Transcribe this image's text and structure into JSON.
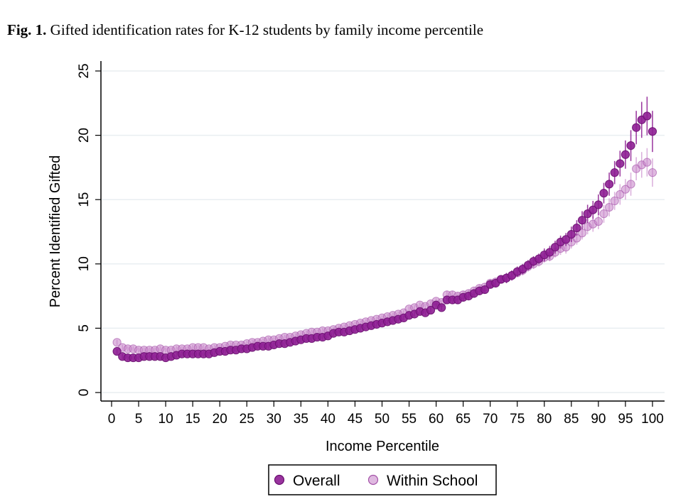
{
  "figure": {
    "label": "Fig. 1.",
    "title": "Gifted identification rates for K-12 students by family income percentile"
  },
  "chart_data": {
    "type": "scatter",
    "title": "Gifted identification rates for K-12 students by family income percentile",
    "xlabel": "Income Percentile",
    "ylabel": "Percent Identified Gifted",
    "xlim": [
      0,
      100
    ],
    "ylim": [
      0,
      25
    ],
    "x_ticks": [
      "0",
      "5",
      "10",
      "15",
      "20",
      "25",
      "30",
      "35",
      "40",
      "45",
      "50",
      "55",
      "60",
      "65",
      "70",
      "75",
      "80",
      "85",
      "90",
      "95",
      "100"
    ],
    "y_ticks": [
      "0",
      "5",
      "10",
      "15",
      "20",
      "25"
    ],
    "grid": true,
    "legend_position": "bottom",
    "series": [
      {
        "name": "Overall",
        "color": "#8a1c8f",
        "x": [
          1,
          2,
          3,
          4,
          5,
          6,
          7,
          8,
          9,
          10,
          11,
          12,
          13,
          14,
          15,
          16,
          17,
          18,
          19,
          20,
          21,
          22,
          23,
          24,
          25,
          26,
          27,
          28,
          29,
          30,
          31,
          32,
          33,
          34,
          35,
          36,
          37,
          38,
          39,
          40,
          41,
          42,
          43,
          44,
          45,
          46,
          47,
          48,
          49,
          50,
          51,
          52,
          53,
          54,
          55,
          56,
          57,
          58,
          59,
          60,
          61,
          62,
          63,
          64,
          65,
          66,
          67,
          68,
          69,
          70,
          71,
          72,
          73,
          74,
          75,
          76,
          77,
          78,
          79,
          80,
          81,
          82,
          83,
          84,
          85,
          86,
          87,
          88,
          89,
          90,
          91,
          92,
          93,
          94,
          95,
          96,
          97,
          98,
          99,
          100
        ],
        "y": [
          3.2,
          2.8,
          2.7,
          2.7,
          2.7,
          2.8,
          2.8,
          2.8,
          2.8,
          2.7,
          2.8,
          2.9,
          3.0,
          3.0,
          3.0,
          3.0,
          3.0,
          3.0,
          3.1,
          3.2,
          3.2,
          3.3,
          3.3,
          3.4,
          3.4,
          3.5,
          3.6,
          3.6,
          3.6,
          3.7,
          3.8,
          3.8,
          3.9,
          4.0,
          4.1,
          4.2,
          4.2,
          4.3,
          4.3,
          4.4,
          4.6,
          4.7,
          4.7,
          4.8,
          4.9,
          5.0,
          5.1,
          5.2,
          5.3,
          5.4,
          5.5,
          5.6,
          5.7,
          5.8,
          6.0,
          6.1,
          6.3,
          6.2,
          6.4,
          6.8,
          6.6,
          7.2,
          7.2,
          7.2,
          7.4,
          7.5,
          7.7,
          7.9,
          8.0,
          8.4,
          8.5,
          8.8,
          8.9,
          9.1,
          9.4,
          9.6,
          9.9,
          10.2,
          10.4,
          10.7,
          10.9,
          11.3,
          11.7,
          11.9,
          12.3,
          12.8,
          13.4,
          13.9,
          14.2,
          14.6,
          15.5,
          16.2,
          17.1,
          17.8,
          18.5,
          19.2,
          20.6,
          21.2,
          21.5,
          20.3
        ],
        "error": [
          0.2,
          0.2,
          0.2,
          0.2,
          0.2,
          0.2,
          0.2,
          0.2,
          0.2,
          0.2,
          0.2,
          0.2,
          0.2,
          0.2,
          0.2,
          0.2,
          0.2,
          0.2,
          0.2,
          0.2,
          0.2,
          0.2,
          0.2,
          0.2,
          0.2,
          0.2,
          0.2,
          0.2,
          0.2,
          0.2,
          0.2,
          0.2,
          0.2,
          0.2,
          0.2,
          0.2,
          0.2,
          0.2,
          0.2,
          0.2,
          0.2,
          0.2,
          0.2,
          0.2,
          0.2,
          0.2,
          0.2,
          0.2,
          0.2,
          0.2,
          0.2,
          0.2,
          0.2,
          0.2,
          0.2,
          0.2,
          0.2,
          0.2,
          0.2,
          0.2,
          0.2,
          0.3,
          0.3,
          0.3,
          0.3,
          0.3,
          0.3,
          0.3,
          0.3,
          0.3,
          0.3,
          0.3,
          0.4,
          0.4,
          0.4,
          0.4,
          0.4,
          0.4,
          0.4,
          0.5,
          0.5,
          0.5,
          0.5,
          0.5,
          0.6,
          0.6,
          0.7,
          0.7,
          0.7,
          0.8,
          0.8,
          0.9,
          0.9,
          1.0,
          1.1,
          1.2,
          1.3,
          1.4,
          1.5,
          1.6
        ]
      },
      {
        "name": "Within School",
        "color": "#c77fc9",
        "x": [
          1,
          2,
          3,
          4,
          5,
          6,
          7,
          8,
          9,
          10,
          11,
          12,
          13,
          14,
          15,
          16,
          17,
          18,
          19,
          20,
          21,
          22,
          23,
          24,
          25,
          26,
          27,
          28,
          29,
          30,
          31,
          32,
          33,
          34,
          35,
          36,
          37,
          38,
          39,
          40,
          41,
          42,
          43,
          44,
          45,
          46,
          47,
          48,
          49,
          50,
          51,
          52,
          53,
          54,
          55,
          56,
          57,
          58,
          59,
          60,
          61,
          62,
          63,
          64,
          65,
          66,
          67,
          68,
          69,
          70,
          71,
          72,
          73,
          74,
          75,
          76,
          77,
          78,
          79,
          80,
          81,
          82,
          83,
          84,
          85,
          86,
          87,
          88,
          89,
          90,
          91,
          92,
          93,
          94,
          95,
          96,
          97,
          98,
          99,
          100
        ],
        "y": [
          3.9,
          3.5,
          3.4,
          3.4,
          3.3,
          3.3,
          3.3,
          3.3,
          3.4,
          3.3,
          3.3,
          3.4,
          3.4,
          3.4,
          3.5,
          3.5,
          3.5,
          3.4,
          3.5,
          3.5,
          3.6,
          3.7,
          3.7,
          3.7,
          3.8,
          3.9,
          3.9,
          4.0,
          4.1,
          4.1,
          4.2,
          4.3,
          4.3,
          4.4,
          4.5,
          4.6,
          4.7,
          4.7,
          4.8,
          4.8,
          4.9,
          5.0,
          5.1,
          5.2,
          5.3,
          5.4,
          5.5,
          5.6,
          5.7,
          5.8,
          5.9,
          6.0,
          6.1,
          6.2,
          6.5,
          6.6,
          6.8,
          6.7,
          6.9,
          7.1,
          7.0,
          7.6,
          7.6,
          7.5,
          7.6,
          7.7,
          7.9,
          8.1,
          8.2,
          8.5,
          8.6,
          8.8,
          8.9,
          9.1,
          9.3,
          9.5,
          9.8,
          10.0,
          10.2,
          10.5,
          10.6,
          10.9,
          11.2,
          11.3,
          11.7,
          12.0,
          12.4,
          12.9,
          13.1,
          13.3,
          13.9,
          14.4,
          14.9,
          15.4,
          15.8,
          16.2,
          17.4,
          17.7,
          17.9,
          17.1
        ],
        "error": [
          0.2,
          0.2,
          0.2,
          0.2,
          0.2,
          0.2,
          0.2,
          0.2,
          0.2,
          0.2,
          0.2,
          0.2,
          0.2,
          0.2,
          0.2,
          0.2,
          0.2,
          0.2,
          0.2,
          0.2,
          0.2,
          0.2,
          0.2,
          0.2,
          0.2,
          0.2,
          0.2,
          0.2,
          0.2,
          0.2,
          0.2,
          0.2,
          0.2,
          0.2,
          0.2,
          0.2,
          0.2,
          0.2,
          0.2,
          0.2,
          0.2,
          0.2,
          0.2,
          0.2,
          0.2,
          0.2,
          0.2,
          0.2,
          0.2,
          0.2,
          0.2,
          0.2,
          0.2,
          0.2,
          0.2,
          0.2,
          0.2,
          0.2,
          0.2,
          0.2,
          0.2,
          0.3,
          0.3,
          0.3,
          0.3,
          0.3,
          0.3,
          0.3,
          0.3,
          0.3,
          0.3,
          0.3,
          0.3,
          0.3,
          0.3,
          0.4,
          0.4,
          0.4,
          0.4,
          0.4,
          0.4,
          0.4,
          0.5,
          0.5,
          0.5,
          0.5,
          0.5,
          0.6,
          0.6,
          0.6,
          0.7,
          0.7,
          0.7,
          0.8,
          0.8,
          0.9,
          0.9,
          1.0,
          1.1,
          1.1
        ]
      }
    ]
  }
}
